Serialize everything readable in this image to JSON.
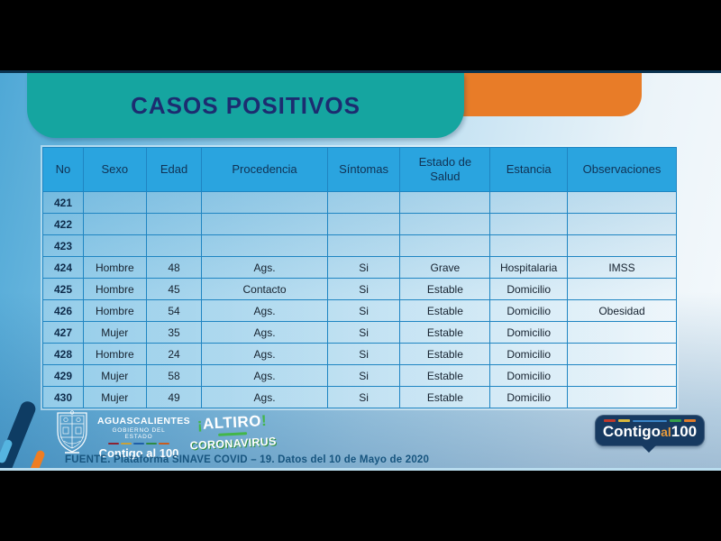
{
  "slide": {
    "title": "CASOS POSITIVOS",
    "source": "FUENTE. Plataforma SINAVE COVID – 19. Datos del 10 de Mayo de 2020"
  },
  "table": {
    "columns": [
      "No",
      "Sexo",
      "Edad",
      "Procedencia",
      "Síntomas",
      "Estado de Salud",
      "Estancia",
      "Observaciones"
    ],
    "rows": [
      [
        "421",
        "",
        "",
        "",
        "",
        "",
        "",
        ""
      ],
      [
        "422",
        "",
        "",
        "",
        "",
        "",
        "",
        ""
      ],
      [
        "423",
        "",
        "",
        "",
        "",
        "",
        "",
        ""
      ],
      [
        "424",
        "Hombre",
        "48",
        "Ags.",
        "Si",
        "Grave",
        "Hospitalaria",
        "IMSS"
      ],
      [
        "425",
        "Hombre",
        "45",
        "Contacto",
        "Si",
        "Estable",
        "Domicilio",
        ""
      ],
      [
        "426",
        "Hombre",
        "54",
        "Ags.",
        "Si",
        "Estable",
        "Domicilio",
        "Obesidad"
      ],
      [
        "427",
        "Mujer",
        "35",
        "Ags.",
        "Si",
        "Estable",
        "Domicilio",
        ""
      ],
      [
        "428",
        "Hombre",
        "24",
        "Ags.",
        "Si",
        "Estable",
        "Domicilio",
        ""
      ],
      [
        "429",
        "Mujer",
        "58",
        "Ags.",
        "Si",
        "Estable",
        "Domicilio",
        ""
      ],
      [
        "430",
        "Mujer",
        "49",
        "Ags.",
        "Si",
        "Estable",
        "Domicilio",
        ""
      ]
    ]
  },
  "footer": {
    "government": {
      "name": "AGUASCALIENTES",
      "subtitle": "GOBIERNO DEL ESTADO",
      "slogan": "Contigo al 100"
    },
    "campaign": {
      "excl_open": "¡",
      "word": "ALTIRO",
      "excl_close": "!",
      "line2": "CORONAVIRUS"
    },
    "badge": {
      "word1": "Contigo",
      "word2": "al",
      "word3": "100"
    }
  },
  "colors": {
    "teal_tab": "#15a5a0",
    "orange_tab": "#e87c28",
    "table_header_blue": "#2aa4df",
    "grid_blue": "#1f85c2",
    "title_navy": "#1c2c70",
    "badge_navy": "#173a61",
    "badge_dash_colors": [
      "#c0392b",
      "#d9b83c",
      "#3a86c8",
      "#35a04a",
      "#e07b2a"
    ],
    "gov_dash_colors": [
      "#8c2332",
      "#c8a13a",
      "#1f5fa8",
      "#2e8b44",
      "#c85c1e"
    ]
  }
}
